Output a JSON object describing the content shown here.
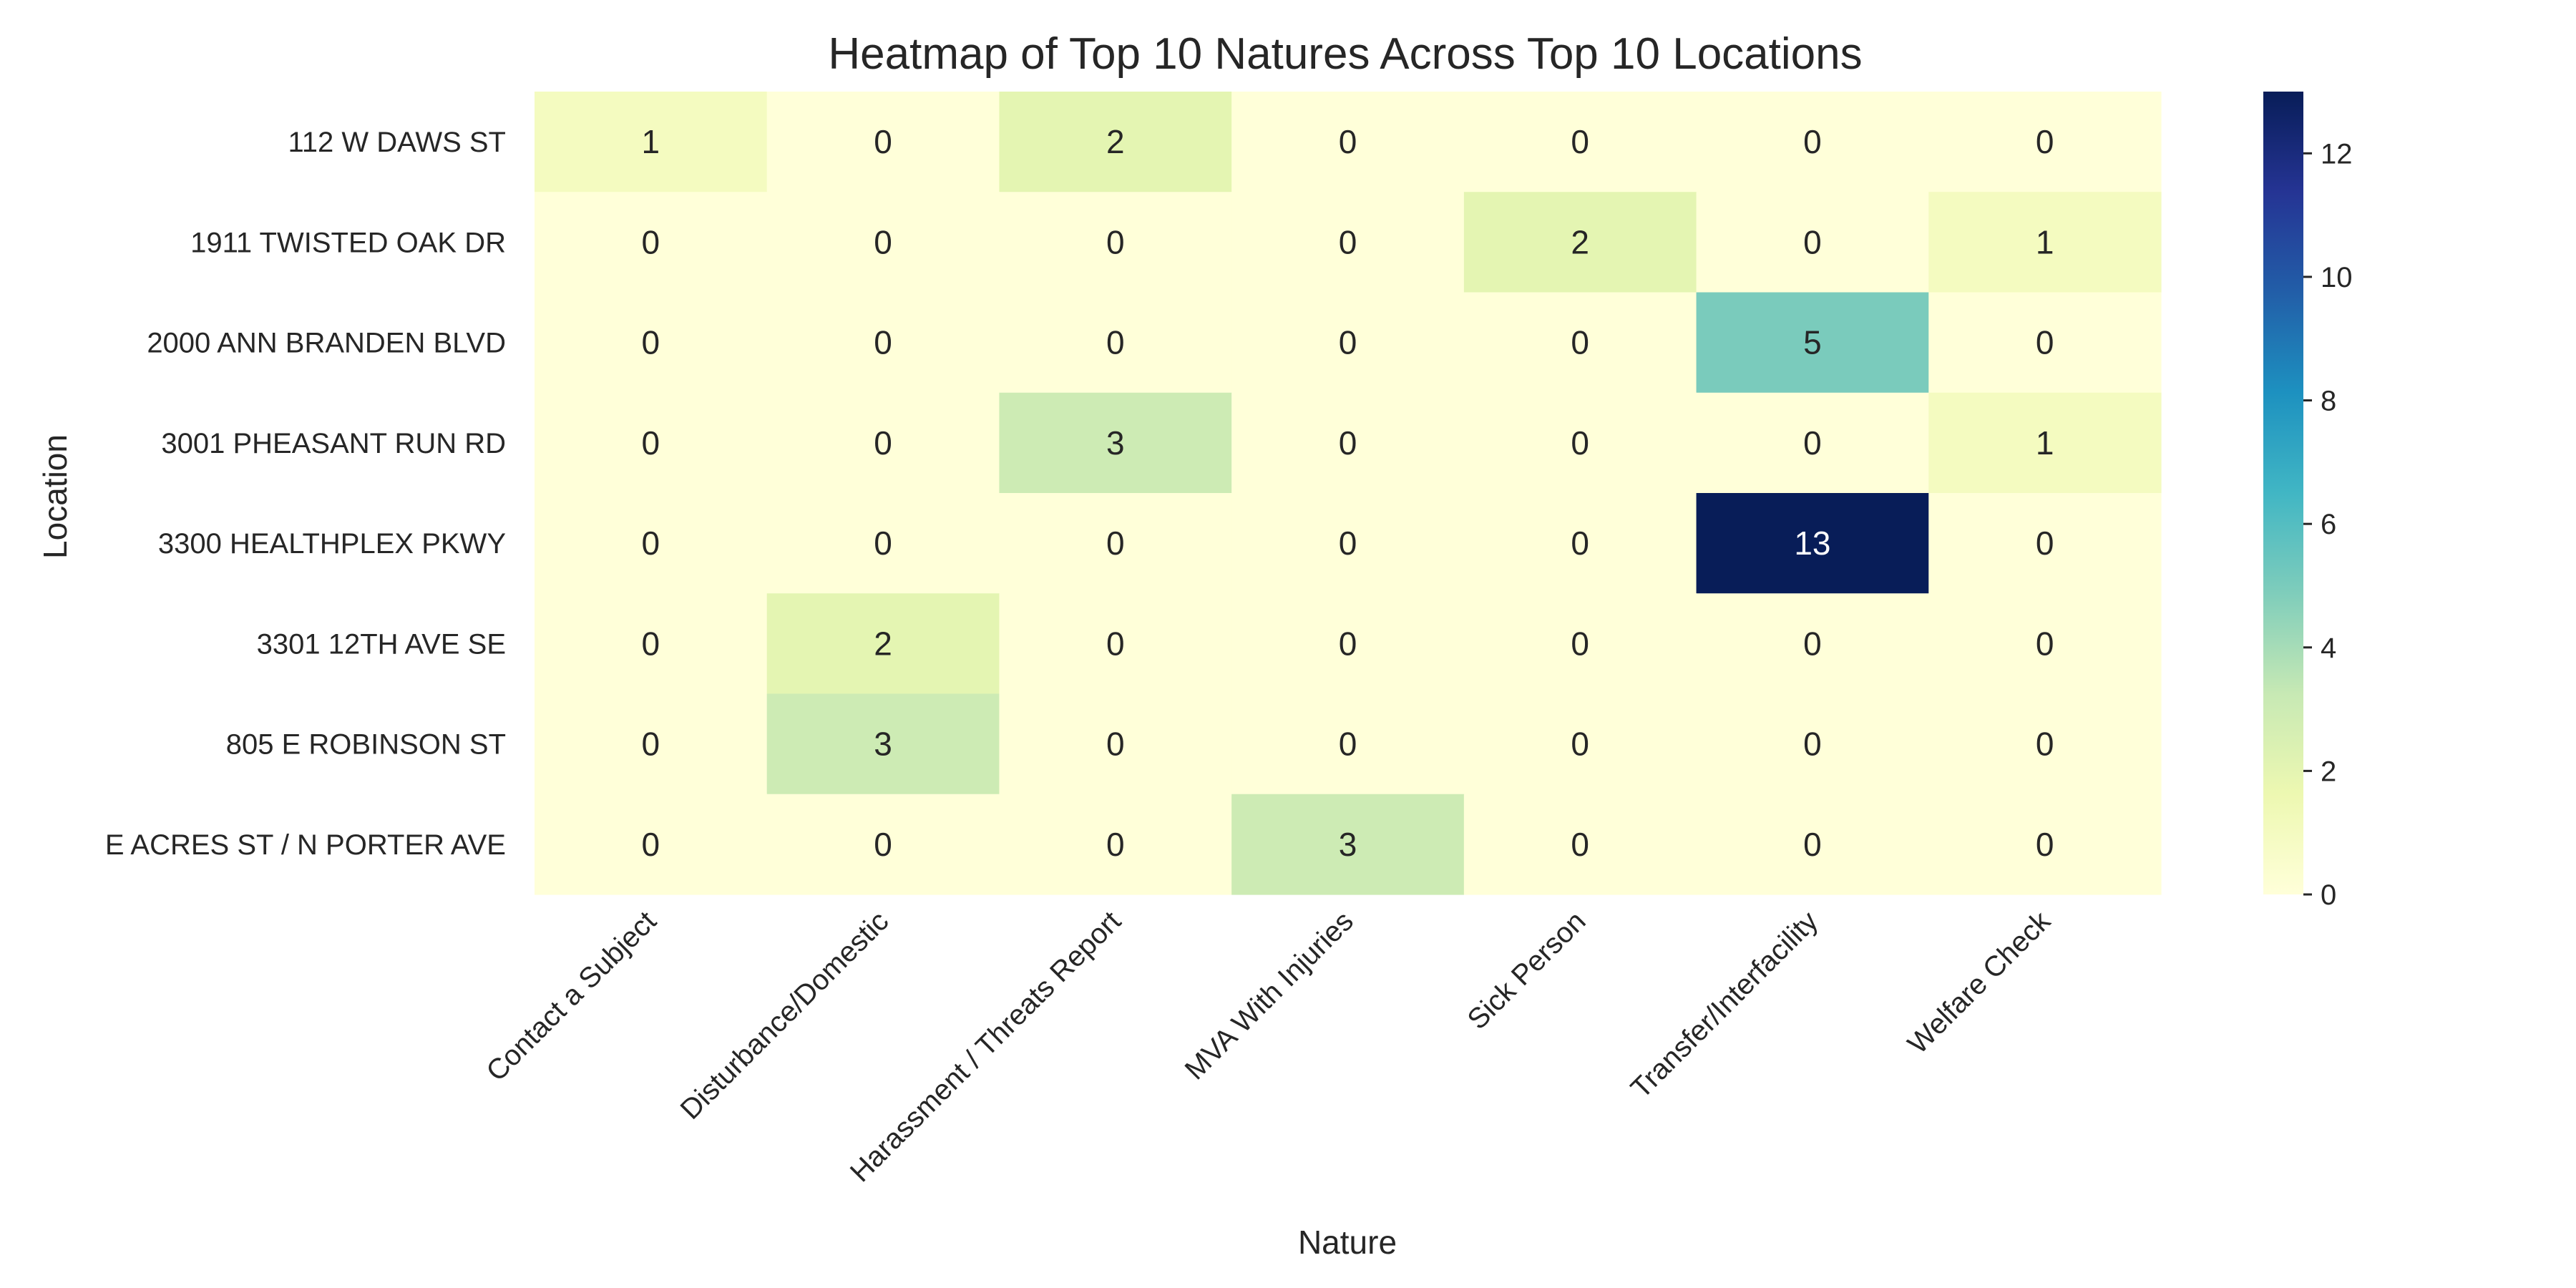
{
  "chart_data": {
    "type": "heatmap",
    "title": "Heatmap of Top 10 Natures Across Top 10 Locations",
    "xlabel": "Nature",
    "ylabel": "Location",
    "x_categories": [
      "Contact a Subject",
      "Disturbance/Domestic",
      "Harassment / Threats Report",
      "MVA With Injuries",
      "Sick Person",
      "Transfer/Interfacility",
      "Welfare Check"
    ],
    "y_categories": [
      "112 W DAWS ST",
      "1911 TWISTED OAK DR",
      "2000 ANN BRANDEN BLVD",
      "3001 PHEASANT RUN RD",
      "3300 HEALTHPLEX PKWY",
      "3301 12TH AVE SE",
      "805 E ROBINSON ST",
      "E ACRES ST / N PORTER AVE"
    ],
    "values": [
      [
        1,
        0,
        2,
        0,
        0,
        0,
        0
      ],
      [
        0,
        0,
        0,
        0,
        2,
        0,
        1
      ],
      [
        0,
        0,
        0,
        0,
        0,
        5,
        0
      ],
      [
        0,
        0,
        3,
        0,
        0,
        0,
        1
      ],
      [
        0,
        0,
        0,
        0,
        0,
        13,
        0
      ],
      [
        0,
        2,
        0,
        0,
        0,
        0,
        0
      ],
      [
        0,
        3,
        0,
        0,
        0,
        0,
        0
      ],
      [
        0,
        0,
        0,
        3,
        0,
        0,
        0
      ]
    ],
    "colorbar": {
      "colormap": "YlGnBu",
      "range": [
        0,
        13
      ],
      "ticks": [
        0,
        2,
        4,
        6,
        8,
        10,
        12
      ]
    },
    "annotations": true,
    "grid": false
  }
}
